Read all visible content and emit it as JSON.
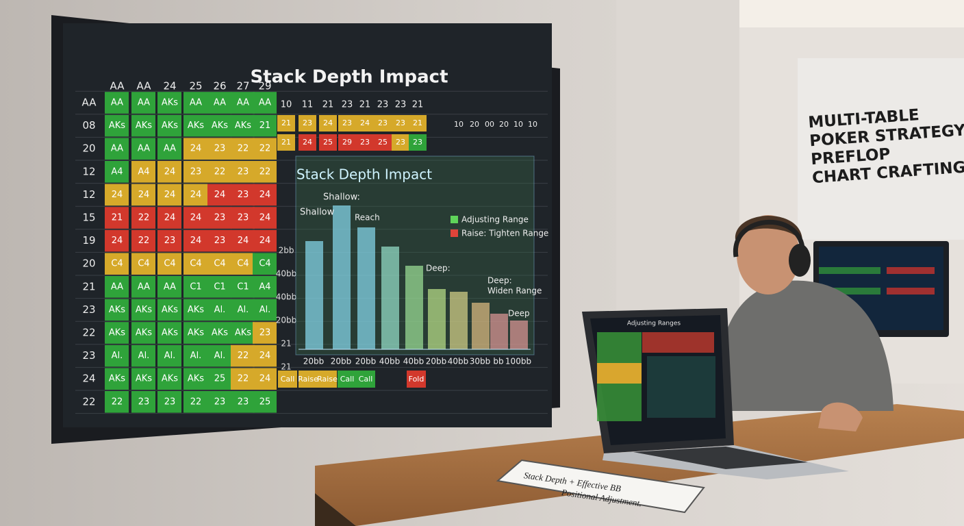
{
  "tv": {
    "title": "Stack Depth Impact",
    "header": [
      "AA",
      "AA",
      "24",
      "25",
      "26",
      "27",
      "29"
    ],
    "right_header": [
      "10",
      "11",
      "21",
      "23",
      "21",
      "23",
      "23",
      "21"
    ],
    "right_header_far": [
      "10",
      "20",
      "00",
      "20",
      "10",
      "10"
    ],
    "rows": [
      {
        "label": "AA",
        "cells": [
          "AA",
          "AA",
          "AKs",
          "AA",
          "AA",
          "AA",
          "AA"
        ],
        "colors": [
          "green",
          "green",
          "green",
          "green",
          "green",
          "green",
          "green"
        ]
      },
      {
        "label": "08",
        "cells": [
          "AKs",
          "AKs",
          "AKs",
          "AKs",
          "AKs",
          "AKs",
          "21"
        ],
        "colors": [
          "green",
          "green",
          "green",
          "green",
          "green",
          "green",
          "green"
        ]
      },
      {
        "label": "20",
        "cells": [
          "AA",
          "AA",
          "AA",
          "24",
          "23",
          "22",
          "22"
        ],
        "colors": [
          "green",
          "green",
          "green",
          "yellow",
          "yellow",
          "yellow",
          "yellow"
        ]
      },
      {
        "label": "12",
        "cells": [
          "A4",
          "A4",
          "24",
          "23",
          "22",
          "23",
          "22"
        ],
        "colors": [
          "green",
          "yellow",
          "yellow",
          "yellow",
          "yellow",
          "yellow",
          "yellow"
        ]
      },
      {
        "label": "12",
        "cells": [
          "24",
          "24",
          "24",
          "24",
          "24",
          "23",
          "24"
        ],
        "colors": [
          "yellow",
          "yellow",
          "yellow",
          "yellow",
          "red",
          "red",
          "red"
        ]
      },
      {
        "label": "15",
        "cells": [
          "21",
          "22",
          "24",
          "24",
          "23",
          "23",
          "24"
        ],
        "colors": [
          "red",
          "red",
          "red",
          "red",
          "red",
          "red",
          "red"
        ]
      },
      {
        "label": "19",
        "cells": [
          "24",
          "22",
          "23",
          "24",
          "23",
          "24",
          "24"
        ],
        "colors": [
          "red",
          "red",
          "red",
          "red",
          "red",
          "red",
          "red"
        ]
      },
      {
        "label": "20",
        "cells": [
          "C4",
          "C4",
          "C4",
          "C4",
          "C4",
          "C4",
          "C4"
        ],
        "colors": [
          "yellow",
          "yellow",
          "yellow",
          "yellow",
          "yellow",
          "yellow",
          "green"
        ]
      },
      {
        "label": "21",
        "cells": [
          "AA",
          "AA",
          "AA",
          "C1",
          "C1",
          "C1",
          "A4"
        ],
        "colors": [
          "green",
          "green",
          "green",
          "green",
          "green",
          "green",
          "green"
        ]
      },
      {
        "label": "23",
        "cells": [
          "AKs",
          "AKs",
          "AKs",
          "AKs",
          "Al.",
          "Al.",
          "Al."
        ],
        "colors": [
          "green",
          "green",
          "green",
          "green",
          "green",
          "green",
          "green"
        ]
      },
      {
        "label": "22",
        "cells": [
          "AKs",
          "AKs",
          "AKs",
          "AKs",
          "AKs",
          "AKs",
          "23"
        ],
        "colors": [
          "green",
          "green",
          "green",
          "green",
          "green",
          "green",
          "yellow"
        ]
      },
      {
        "label": "23",
        "cells": [
          "Al.",
          "Al.",
          "Al.",
          "Al.",
          "Al.",
          "22",
          "24"
        ],
        "colors": [
          "green",
          "green",
          "green",
          "green",
          "green",
          "yellow",
          "yellow"
        ]
      },
      {
        "label": "24",
        "cells": [
          "AKs",
          "AKs",
          "AKs",
          "AKs",
          "25",
          "22",
          "24"
        ],
        "colors": [
          "green",
          "green",
          "green",
          "green",
          "green",
          "yellow",
          "yellow"
        ]
      },
      {
        "label": "22",
        "cells": [
          "22",
          "23",
          "23",
          "22",
          "23",
          "23",
          "25"
        ],
        "colors": [
          "green",
          "green",
          "green",
          "green",
          "green",
          "green",
          "green"
        ]
      }
    ],
    "right_rows": [
      {
        "cells": [
          "21",
          "23",
          "24",
          "23",
          "24",
          "23",
          "23",
          "21"
        ],
        "colors": [
          "yellow",
          "yellow",
          "yellow",
          "yellow",
          "yellow",
          "yellow",
          "yellow",
          "yellow"
        ]
      },
      {
        "cells": [
          "21",
          "24",
          "25",
          "29",
          "23",
          "25",
          "23",
          "23"
        ],
        "colors": [
          "yellow",
          "red",
          "red",
          "red",
          "red",
          "red",
          "yellow",
          "green"
        ]
      }
    ],
    "side_labels": [
      "2bb",
      "40bb",
      "40bb",
      "20bb",
      "21",
      "21"
    ],
    "bottom_row": {
      "cells": [
        "Call",
        "Raise",
        "Raise",
        "Call",
        "Call",
        "Fold"
      ],
      "colors": [
        "yellow",
        "yellow",
        "yellow",
        "green",
        "green",
        "red"
      ]
    },
    "overlay": {
      "title": "Stack Depth Impact",
      "shallow_heading": "Shallow:",
      "shallow": "Shallow",
      "reach": "Reach",
      "legend": [
        {
          "name": "Adjusting Range",
          "color": "#5fd35a"
        },
        {
          "name": "Raise: Tighten Range",
          "color": "#e0443a"
        }
      ],
      "deep_left": "Deep:",
      "deep_right": "Deep:",
      "widen": "Widen Range",
      "deep": "Deep",
      "x_labels": [
        "20bb",
        "20bb",
        "20bb",
        "40bb",
        "40bb",
        "20bb",
        "40bb",
        "30bb",
        "bb",
        "100bb"
      ]
    }
  },
  "sign": [
    "MULTI-TABLE",
    "POKER STRATEGY:",
    "PREFLOP",
    "CHART CRAFTING"
  ],
  "laptop": {
    "title": "Adjusting Ranges"
  },
  "notebook": [
    "Stack Depth + Effective BB",
    "Positional Adjustment."
  ]
}
